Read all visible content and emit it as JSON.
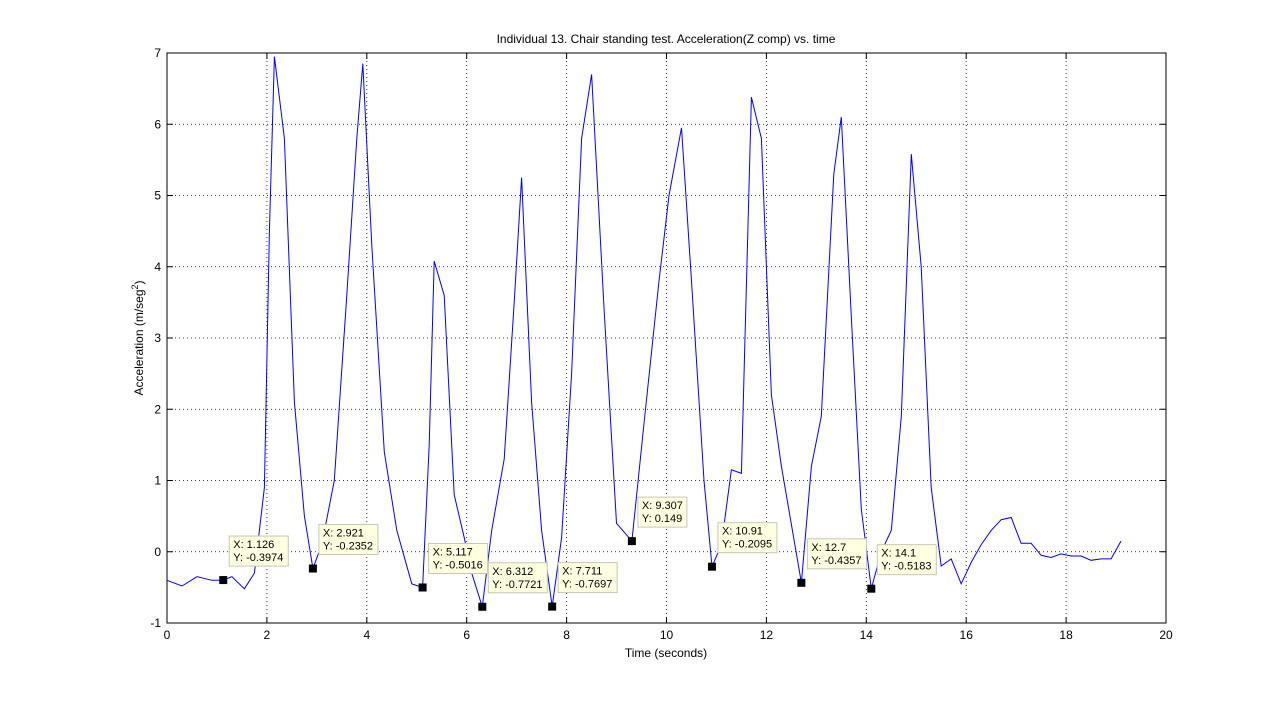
{
  "chart_data": {
    "type": "line",
    "title": "Individual 13. Chair standing test. Acceleration(Z comp) vs. time",
    "xlabel": "Time (seconds)",
    "ylabel_main": "Acceleration (m/seg",
    "ylabel_sup": "2",
    "ylabel_close": ")",
    "xlim": [
      0,
      20
    ],
    "ylim": [
      -1,
      7
    ],
    "x_ticks": [
      0,
      2,
      4,
      6,
      8,
      10,
      12,
      14,
      16,
      18,
      20
    ],
    "y_ticks": [
      -1,
      0,
      1,
      2,
      3,
      4,
      5,
      6,
      7
    ],
    "grid": true,
    "line_color": "#0000ff",
    "series": [
      {
        "x": [
          0.0,
          0.3,
          0.6,
          0.9,
          1.126,
          1.3,
          1.55,
          1.75,
          1.95,
          2.05,
          2.15,
          2.35,
          2.55,
          2.75,
          2.921,
          3.1,
          3.35,
          3.6,
          3.8,
          3.92,
          4.1,
          4.35,
          4.6,
          4.9,
          5.117,
          5.25,
          5.35,
          5.55,
          5.75,
          5.95,
          6.1,
          6.312,
          6.5,
          6.75,
          6.95,
          7.1,
          7.3,
          7.5,
          7.711,
          7.9,
          8.1,
          8.3,
          8.5,
          8.75,
          9.0,
          9.307,
          9.55,
          9.85,
          10.05,
          10.3,
          10.5,
          10.75,
          10.91,
          11.1,
          11.3,
          11.5,
          11.7,
          11.9,
          12.1,
          12.3,
          12.7,
          12.9,
          13.1,
          13.35,
          13.5,
          13.7,
          13.9,
          14.1,
          14.3,
          14.5,
          14.7,
          14.9,
          15.1,
          15.3,
          15.5,
          15.7,
          15.9,
          16.1,
          16.3,
          16.5,
          16.7,
          16.9,
          17.1,
          17.3,
          17.5,
          17.7,
          17.9,
          18.1,
          18.3,
          18.5,
          18.7,
          18.9,
          19.1
        ],
        "y": [
          -0.4,
          -0.48,
          -0.35,
          -0.4,
          -0.3974,
          -0.35,
          -0.52,
          -0.3,
          0.9,
          4.5,
          6.95,
          5.8,
          2.1,
          0.5,
          -0.2352,
          0.1,
          1.0,
          3.6,
          5.8,
          6.85,
          4.3,
          1.4,
          0.3,
          -0.45,
          -0.5016,
          1.5,
          4.08,
          3.6,
          0.8,
          0.2,
          -0.3,
          -0.7721,
          0.3,
          1.3,
          3.5,
          5.25,
          2.1,
          0.3,
          -0.7697,
          0.2,
          2.5,
          5.8,
          6.7,
          3.4,
          0.4,
          0.149,
          1.8,
          3.8,
          5.0,
          5.95,
          3.8,
          1.0,
          -0.2095,
          0.1,
          1.15,
          1.1,
          6.38,
          5.8,
          2.2,
          1.2,
          -0.4357,
          1.2,
          1.9,
          5.3,
          6.1,
          3.3,
          0.6,
          -0.5183,
          0.0,
          0.3,
          1.9,
          5.58,
          4.0,
          0.9,
          -0.2,
          -0.1,
          -0.45,
          -0.15,
          0.1,
          0.3,
          0.45,
          0.48,
          0.12,
          0.12,
          -0.05,
          -0.08,
          -0.03,
          -0.06,
          -0.06,
          -0.12,
          -0.1,
          -0.1,
          0.15
        ]
      }
    ],
    "datatips": [
      {
        "x": 1.126,
        "y": -0.3974,
        "label_x": "X: 1.126",
        "label_y": "Y: -0.3974"
      },
      {
        "x": 2.921,
        "y": -0.2352,
        "label_x": "X: 2.921",
        "label_y": "Y: -0.2352"
      },
      {
        "x": 5.117,
        "y": -0.5016,
        "label_x": "X: 5.117",
        "label_y": "Y: -0.5016"
      },
      {
        "x": 6.312,
        "y": -0.7721,
        "label_x": "X: 6.312",
        "label_y": "Y: -0.7721"
      },
      {
        "x": 7.711,
        "y": -0.7697,
        "label_x": "X: 7.711",
        "label_y": "Y: -0.7697"
      },
      {
        "x": 9.307,
        "y": 0.149,
        "label_x": "X: 9.307",
        "label_y": "Y: 0.149"
      },
      {
        "x": 10.91,
        "y": -0.2095,
        "label_x": "X: 10.91",
        "label_y": "Y: -0.2095"
      },
      {
        "x": 12.7,
        "y": -0.4357,
        "label_x": "X: 12.7",
        "label_y": "Y: -0.4357"
      },
      {
        "x": 14.1,
        "y": -0.5183,
        "label_x": "X: 14.1",
        "label_y": "Y: -0.5183"
      }
    ]
  }
}
